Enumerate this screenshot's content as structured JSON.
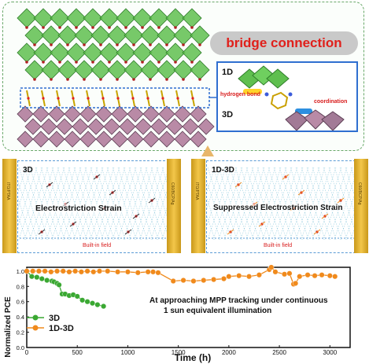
{
  "top": {
    "bridge_label": "bridge connection",
    "label_1d": "1D",
    "label_3d": "3D",
    "hydrogen_bond": "hydrogen bond",
    "coordination": "coordination",
    "colors": {
      "octahedra_1d": "#5fbf4f",
      "octahedra_3d": "#b98aa6",
      "pill_text": "#e0201b",
      "box_border": "#2f6fd0"
    }
  },
  "left_panel": {
    "title": "3D",
    "strain_label": "Electrostriction Strain",
    "field_label": "Built-in field"
  },
  "right_panel": {
    "title": "1D-3D",
    "strain_label": "Suppressed Electrostriction Strain",
    "field_label": "Built-in field"
  },
  "chart_data": {
    "type": "scatter",
    "ylabel": "Normalized PCE",
    "xlabel": "Time (h)",
    "xlim": [
      0,
      3200
    ],
    "ylim": [
      0.0,
      1.05
    ],
    "xticks": [
      "0",
      "500",
      "1000",
      "1500",
      "2000",
      "2500",
      "3000"
    ],
    "yticks": [
      "0.0",
      "0.2",
      "0.4",
      "0.6",
      "0.8",
      "1.0"
    ],
    "annotation_line1": "At approaching MPP tracking  under continuous",
    "annotation_line2": "1 sun equivalent illumination",
    "series": [
      {
        "name": "3D",
        "color": "#3aa832",
        "x": [
          0,
          50,
          100,
          150,
          200,
          250,
          270,
          300,
          320,
          350,
          380,
          420,
          460,
          500,
          550,
          600,
          650,
          700,
          760
        ],
        "y": [
          1.0,
          0.93,
          0.92,
          0.9,
          0.88,
          0.87,
          0.86,
          0.84,
          0.82,
          0.7,
          0.7,
          0.68,
          0.69,
          0.67,
          0.62,
          0.6,
          0.58,
          0.56,
          0.54
        ]
      },
      {
        "name": "1D-3D",
        "color": "#f08a1c",
        "x": [
          0,
          60,
          120,
          180,
          240,
          300,
          360,
          420,
          480,
          540,
          600,
          660,
          720,
          800,
          900,
          1000,
          1100,
          1200,
          1250,
          1300,
          1450,
          1550,
          1650,
          1750,
          1850,
          1950,
          2000,
          2100,
          2200,
          2300,
          2400,
          2420,
          2460,
          2550,
          2600,
          2640,
          2660,
          2700,
          2780,
          2850,
          2920,
          3000,
          3050
        ],
        "y": [
          1.0,
          1.0,
          1.0,
          1.0,
          0.99,
          1.0,
          1.0,
          0.99,
          1.0,
          0.99,
          1.0,
          0.99,
          1.0,
          1.0,
          0.99,
          0.99,
          0.98,
          0.99,
          0.99,
          0.98,
          0.87,
          0.88,
          0.87,
          0.88,
          0.89,
          0.9,
          0.93,
          0.94,
          0.93,
          0.95,
          1.02,
          1.05,
          0.99,
          0.96,
          0.97,
          0.83,
          0.84,
          0.93,
          0.95,
          0.94,
          0.95,
          0.94,
          0.93
        ]
      }
    ]
  }
}
